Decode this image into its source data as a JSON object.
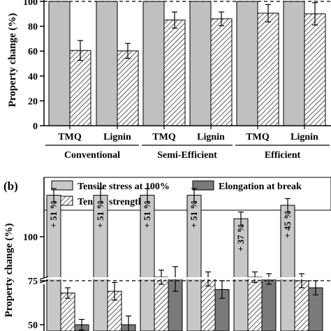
{
  "chart_data": [
    {
      "type": "bar",
      "panel_label": "",
      "ylabel": "Property change (%)",
      "ylim": [
        0,
        105
      ],
      "yticks": [
        "0",
        "20",
        "40",
        "60",
        "80",
        "100"
      ],
      "reference_line": 100,
      "categories": [
        "TMQ",
        "Lignin",
        "TMQ",
        "Lignin",
        "TMQ",
        "Lignin"
      ],
      "groups": [
        "Conventional",
        "Semi-Efficient",
        "Efficient"
      ],
      "series": [
        {
          "values": [
            100,
            100,
            100,
            100,
            100,
            100
          ],
          "errors": [
            0,
            0,
            0,
            0,
            0,
            0
          ],
          "color": "#c0c0c0",
          "pattern": "solid"
        },
        {
          "values": [
            60.5,
            60.2,
            85,
            86,
            90.5,
            90
          ],
          "errors": [
            8,
            6,
            6.5,
            5.5,
            7,
            9
          ],
          "color": "#c0c0c0",
          "pattern": "hatch"
        }
      ]
    },
    {
      "type": "bar",
      "panel_label": "(b)",
      "ylabel": "Property change (%)",
      "yticks": [
        "50",
        "75",
        "100"
      ],
      "broken_axis": true,
      "reference_line": 100,
      "legend": [
        "Tensile stress at 100%",
        "Elongation at break",
        "Tensile strength"
      ],
      "series": [
        {
          "name": "Tensile stress at 100%",
          "values": [
            151,
            151,
            151,
            151,
            137,
            145
          ],
          "errors": [
            4,
            4,
            4,
            4,
            4,
            4
          ],
          "labels": [
            "+ 51 %",
            "+ 51 %",
            "+ 51 %",
            "+ 51 %",
            "+ 37 %",
            "+ 45 %"
          ],
          "color": "#c8c8c8",
          "pattern": "solid"
        },
        {
          "name": "Tensile strength",
          "values": [
            68,
            69,
            77,
            76,
            77,
            75
          ],
          "errors": [
            3,
            5,
            4,
            4,
            3,
            4
          ],
          "color": "#c8c8c8",
          "pattern": "hatch"
        },
        {
          "name": "Elongation at break",
          "values": [
            50,
            50,
            76,
            70,
            76,
            71
          ],
          "errors": [
            3,
            5,
            7,
            5,
            3,
            4
          ],
          "color": "#7a7a7a",
          "pattern": "solid"
        }
      ]
    }
  ]
}
